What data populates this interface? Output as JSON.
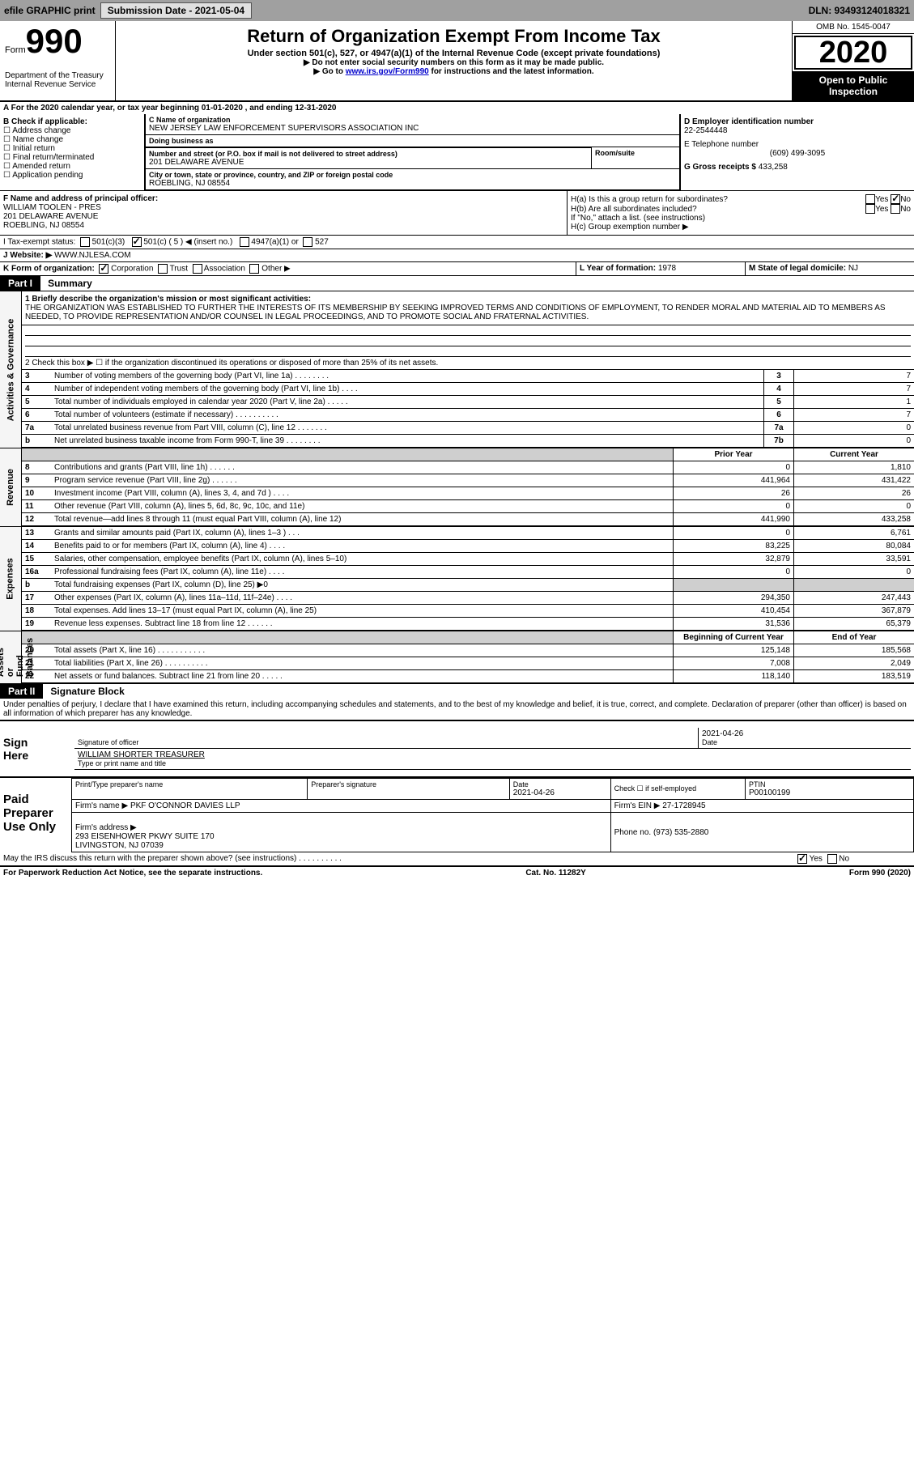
{
  "topbar": {
    "efile": "efile GRAPHIC print",
    "submission_label": "Submission Date - 2021-05-04",
    "dln_label": "DLN: 93493124018321"
  },
  "header": {
    "form_word": "Form",
    "form_num": "990",
    "dept": "Department of the Treasury\nInternal Revenue Service",
    "title": "Return of Organization Exempt From Income Tax",
    "sub": "Under section 501(c), 527, or 4947(a)(1) of the Internal Revenue Code (except private foundations)",
    "instr1": "▶ Do not enter social security numbers on this form as it may be made public.",
    "instr2_pre": "▶ Go to ",
    "instr2_link": "www.irs.gov/Form990",
    "instr2_post": " for instructions and the latest information.",
    "omb": "OMB No. 1545-0047",
    "year": "2020",
    "open": "Open to Public\nInspection"
  },
  "section_a": "A For the 2020 calendar year, or tax year beginning 01-01-2020   , and ending 12-31-2020",
  "b": {
    "label": "B Check if applicable:",
    "items": [
      "Address change",
      "Name change",
      "Initial return",
      "Final return/terminated",
      "Amended return",
      "Application pending"
    ]
  },
  "c": {
    "name_label": "C Name of organization",
    "name": "NEW JERSEY LAW ENFORCEMENT SUPERVISORS ASSOCIATION INC",
    "dba_label": "Doing business as",
    "dba": "",
    "addr_label": "Number and street (or P.O. box if mail is not delivered to street address)",
    "addr": "201 DELAWARE AVENUE",
    "room_label": "Room/suite",
    "room": "",
    "csc_label": "City or town, state or province, country, and ZIP or foreign postal code",
    "csc": "ROEBLING, NJ  08554"
  },
  "d": {
    "label": "D Employer identification number",
    "val": "22-2544448"
  },
  "e": {
    "label": "E Telephone number",
    "val": "(609) 499-3095"
  },
  "g": {
    "label": "G Gross receipts $",
    "val": "433,258"
  },
  "f": {
    "label": "F Name and address of principal officer:",
    "name": "WILLIAM TOOLEN - PRES",
    "addr1": "201 DELAWARE AVENUE",
    "addr2": "ROEBLING, NJ  08554"
  },
  "h": {
    "ha": "H(a)  Is this a group return for subordinates?",
    "hb": "H(b)  Are all subordinates included?",
    "hb_note": "If \"No,\" attach a list. (see instructions)",
    "hc": "H(c)  Group exemption number ▶",
    "yes": "Yes",
    "no": "No"
  },
  "i": {
    "label": "I   Tax-exempt status:",
    "o1": "501(c)(3)",
    "o2": "501(c) ( 5 ) ◀ (insert no.)",
    "o3": "4947(a)(1) or",
    "o4": "527"
  },
  "j": {
    "label": "J   Website: ▶",
    "val": "WWW.NJLESA.COM"
  },
  "k": {
    "label": "K Form of organization:",
    "corp": "Corporation",
    "trust": "Trust",
    "assoc": "Association",
    "other": "Other ▶"
  },
  "l": {
    "label": "L Year of formation:",
    "val": "1978"
  },
  "m": {
    "label": "M State of legal domicile:",
    "val": "NJ"
  },
  "part1": {
    "hdr": "Part I",
    "title": "Summary"
  },
  "mission": {
    "label": "1  Briefly describe the organization's mission or most significant activities:",
    "text": "THE ORGANIZATION WAS ESTABLISHED TO FURTHER THE INTERESTS OF ITS MEMBERSHIP BY SEEKING IMPROVED TERMS AND CONDITIONS OF EMPLOYMENT, TO RENDER MORAL AND MATERIAL AID TO MEMBERS AS NEEDED, TO PROVIDE REPRESENTATION AND/OR COUNSEL IN LEGAL PROCEEDINGS, AND TO PROMOTE SOCIAL AND FRATERNAL ACTIVITIES."
  },
  "line2": "2   Check this box ▶ ☐  if the organization discontinued its operations or disposed of more than 25% of its net assets.",
  "gov_lines": [
    {
      "n": "3",
      "d": "Number of voting members of the governing body (Part VI, line 1a)  .   .   .   .   .   .   .   .",
      "b": "3",
      "v": "7"
    },
    {
      "n": "4",
      "d": "Number of independent voting members of the governing body (Part VI, line 1b)  .   .   .   .",
      "b": "4",
      "v": "7"
    },
    {
      "n": "5",
      "d": "Total number of individuals employed in calendar year 2020 (Part V, line 2a)  .   .   .   .   .",
      "b": "5",
      "v": "1"
    },
    {
      "n": "6",
      "d": "Total number of volunteers (estimate if necessary)   .   .   .   .   .   .   .   .   .   .",
      "b": "6",
      "v": "7"
    },
    {
      "n": "7a",
      "d": "Total unrelated business revenue from Part VIII, column (C), line 12   .   .   .   .   .   .   .",
      "b": "7a",
      "v": "0"
    },
    {
      "n": "b",
      "d": "Net unrelated business taxable income from Form 990-T, line 39   .   .   .   .   .   .   .   .",
      "b": "7b",
      "v": "0"
    }
  ],
  "col_hdrs": {
    "prior": "Prior Year",
    "current": "Current Year"
  },
  "rev_lines": [
    {
      "n": "8",
      "d": "Contributions and grants (Part VIII, line 1h)   .   .   .   .   .   .",
      "p": "0",
      "c": "1,810"
    },
    {
      "n": "9",
      "d": "Program service revenue (Part VIII, line 2g)   .   .   .   .   .   .",
      "p": "441,964",
      "c": "431,422"
    },
    {
      "n": "10",
      "d": "Investment income (Part VIII, column (A), lines 3, 4, and 7d )   .   .   .   .",
      "p": "26",
      "c": "26"
    },
    {
      "n": "11",
      "d": "Other revenue (Part VIII, column (A), lines 5, 6d, 8c, 9c, 10c, and 11e)",
      "p": "0",
      "c": "0"
    },
    {
      "n": "12",
      "d": "Total revenue—add lines 8 through 11 (must equal Part VIII, column (A), line 12)",
      "p": "441,990",
      "c": "433,258"
    }
  ],
  "exp_lines": [
    {
      "n": "13",
      "d": "Grants and similar amounts paid (Part IX, column (A), lines 1–3 )  .   .   .",
      "p": "0",
      "c": "6,761"
    },
    {
      "n": "14",
      "d": "Benefits paid to or for members (Part IX, column (A), line 4)  .   .   .   .",
      "p": "83,225",
      "c": "80,084"
    },
    {
      "n": "15",
      "d": "Salaries, other compensation, employee benefits (Part IX, column (A), lines 5–10)",
      "p": "32,879",
      "c": "33,591"
    },
    {
      "n": "16a",
      "d": "Professional fundraising fees (Part IX, column (A), line 11e)   .   .   .   .",
      "p": "0",
      "c": "0"
    },
    {
      "n": "b",
      "d": "Total fundraising expenses (Part IX, column (D), line 25) ▶0",
      "p": "",
      "c": "",
      "shade": true
    },
    {
      "n": "17",
      "d": "Other expenses (Part IX, column (A), lines 11a–11d, 11f–24e)   .   .   .   .",
      "p": "294,350",
      "c": "247,443"
    },
    {
      "n": "18",
      "d": "Total expenses. Add lines 13–17 (must equal Part IX, column (A), line 25)",
      "p": "410,454",
      "c": "367,879"
    },
    {
      "n": "19",
      "d": "Revenue less expenses. Subtract line 18 from line 12  .   .   .   .   .   .",
      "p": "31,536",
      "c": "65,379"
    }
  ],
  "na_hdrs": {
    "beg": "Beginning of Current Year",
    "end": "End of Year"
  },
  "na_lines": [
    {
      "n": "20",
      "d": "Total assets (Part X, line 16)  .   .   .   .   .   .   .   .   .   .   .",
      "p": "125,148",
      "c": "185,568"
    },
    {
      "n": "21",
      "d": "Total liabilities (Part X, line 26)  .   .   .   .   .   .   .   .   .   .",
      "p": "7,008",
      "c": "2,049"
    },
    {
      "n": "22",
      "d": "Net assets or fund balances. Subtract line 21 from line 20  .   .   .   .   .",
      "p": "118,140",
      "c": "183,519"
    }
  ],
  "vlabels": {
    "gov": "Activities & Governance",
    "rev": "Revenue",
    "exp": "Expenses",
    "na": "Net Assets or\nFund Balances"
  },
  "part2": {
    "hdr": "Part II",
    "title": "Signature Block"
  },
  "perjury": "Under penalties of perjury, I declare that I have examined this return, including accompanying schedules and statements, and to the best of my knowledge and belief, it is true, correct, and complete. Declaration of preparer (other than officer) is based on all information of which preparer has any knowledge.",
  "sign": {
    "here": "Sign\nHere",
    "sig_label": "Signature of officer",
    "date": "2021-04-26",
    "date_label": "Date",
    "name": "WILLIAM SHORTER TREASURER",
    "name_label": "Type or print name and title"
  },
  "preparer": {
    "here": "Paid\nPreparer\nUse Only",
    "h1": "Print/Type preparer's name",
    "h2": "Preparer's signature",
    "h3": "Date",
    "h3v": "2021-04-26",
    "h4": "Check ☐ if self-employed",
    "h5": "PTIN",
    "h5v": "P00100199",
    "firm_label": "Firm's name    ▶",
    "firm": "PKF O'CONNOR DAVIES LLP",
    "ein_label": "Firm's EIN ▶",
    "ein": "27-1728945",
    "addr_label": "Firm's address ▶",
    "addr": "293 EISENHOWER PKWY SUITE 170\nLIVINGSTON, NJ  07039",
    "phone_label": "Phone no.",
    "phone": "(973) 535-2880"
  },
  "discuss": "May the IRS discuss this return with the preparer shown above? (see instructions)   .   .   .   .   .   .   .   .   .   .",
  "footer": {
    "left": "For Paperwork Reduction Act Notice, see the separate instructions.",
    "mid": "Cat. No. 11282Y",
    "right": "Form 990 (2020)"
  }
}
